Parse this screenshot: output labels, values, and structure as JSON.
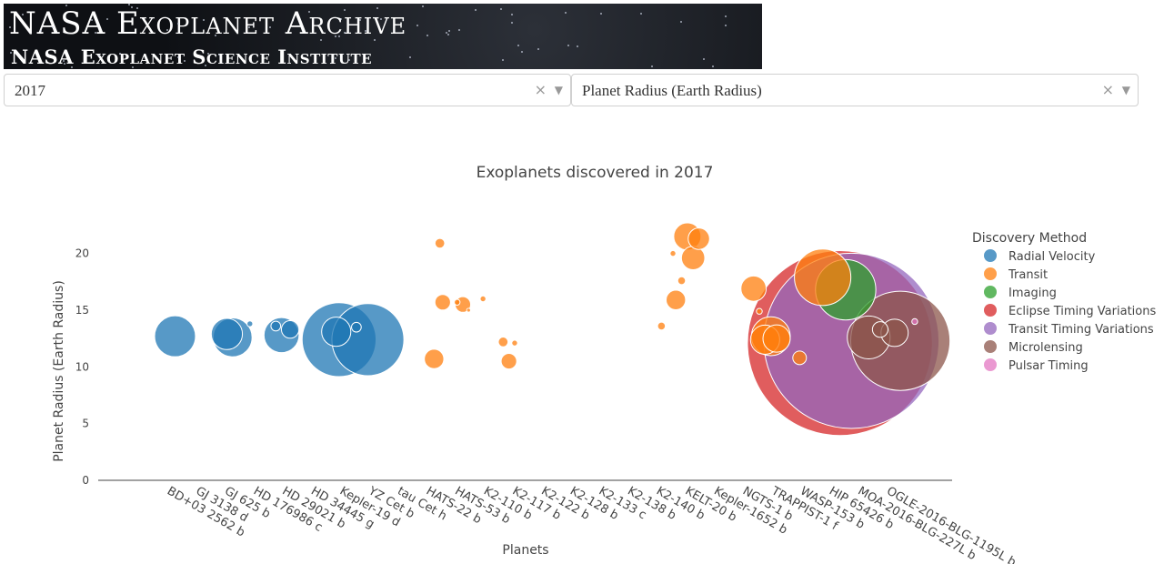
{
  "banner": {
    "title": "NASA Exoplanet Archive",
    "subtitle": "NASA Exoplanet Science Institute"
  },
  "filters": {
    "year": "2017",
    "metric": "Planet Radius (Earth Radius)",
    "clear_glyph": "×",
    "arrow_glyph": "▼"
  },
  "colors": {
    "Radial Velocity": "#1f77b4",
    "Transit": "#ff7f0e",
    "Imaging": "#2ca02c",
    "Eclipse Timing Variations": "#d62728",
    "Transit Timing Variations": "#9467bd",
    "Microlensing": "#8c564b",
    "Pulsar Timing": "#e377c2"
  },
  "chart_data": {
    "type": "scatter",
    "title": "Exoplanets discovered in 2017",
    "xlabel": "Planets",
    "ylabel": "Planet Radius (Earth Radius)",
    "ylim": [
      0,
      23.5
    ],
    "yticks": [
      0,
      5,
      10,
      15,
      20
    ],
    "grid": false,
    "legend_title": "Discovery Method",
    "legend_position": "right",
    "categories": [
      "BD+03 2562 b",
      "GJ 3138 d",
      "GJ 625 b",
      "HD 176986 c",
      "HD 29021 b",
      "HD 34445 g",
      "Kepler-19 d",
      "YZ Cet b",
      "tau Cet h",
      "HATS-22 b",
      "HATS-53 b",
      "K2-110 b",
      "K2-117 b",
      "K2-122 b",
      "K2-128 b",
      "K2-133 c",
      "K2-138 b",
      "K2-140 b",
      "KELT-20 b",
      "Kepler-1652 b",
      "NGTS-1 b",
      "TRAPPIST-1 f",
      "WASP-153 b",
      "HIP 65426 b",
      "MOA-2016-BLG-227L b",
      "OGLE-2016-BLG-1195L b"
    ],
    "series": [
      {
        "name": "Radial Velocity",
        "points": [
          {
            "x": 0.3,
            "y": 12.7,
            "size": 2.1
          },
          {
            "x": 2.1,
            "y": 12.9,
            "size": 1.6
          },
          {
            "x": 2.3,
            "y": 12.6,
            "size": 2.0
          },
          {
            "x": 2.9,
            "y": 13.8,
            "size": 0.3
          },
          {
            "x": 3.8,
            "y": 13.6,
            "size": 0.5
          },
          {
            "x": 4.0,
            "y": 12.8,
            "size": 1.8
          },
          {
            "x": 4.3,
            "y": 13.3,
            "size": 0.9
          },
          {
            "x": 5.9,
            "y": 13.1,
            "size": 1.5
          },
          {
            "x": 6.0,
            "y": 12.4,
            "size": 3.8
          },
          {
            "x": 6.6,
            "y": 13.5,
            "size": 0.5
          },
          {
            "x": 7.0,
            "y": 12.4,
            "size": 3.7
          }
        ]
      },
      {
        "name": "Transit",
        "points": [
          {
            "x": 9.3,
            "y": 10.7,
            "size": 1.0
          },
          {
            "x": 9.5,
            "y": 20.9,
            "size": 0.5
          },
          {
            "x": 9.6,
            "y": 15.7,
            "size": 0.8
          },
          {
            "x": 10.1,
            "y": 15.7,
            "size": 0.3
          },
          {
            "x": 10.3,
            "y": 15.5,
            "size": 0.8
          },
          {
            "x": 10.5,
            "y": 15.0,
            "size": 0.2
          },
          {
            "x": 11.0,
            "y": 16.0,
            "size": 0.3
          },
          {
            "x": 11.7,
            "y": 12.2,
            "size": 0.5
          },
          {
            "x": 11.9,
            "y": 10.5,
            "size": 0.8
          },
          {
            "x": 12.1,
            "y": 12.1,
            "size": 0.3
          },
          {
            "x": 17.2,
            "y": 13.6,
            "size": 0.4
          },
          {
            "x": 17.6,
            "y": 20.0,
            "size": 0.3
          },
          {
            "x": 17.7,
            "y": 15.9,
            "size": 1.0
          },
          {
            "x": 17.9,
            "y": 17.6,
            "size": 0.4
          },
          {
            "x": 18.1,
            "y": 21.5,
            "size": 1.4
          },
          {
            "x": 18.3,
            "y": 19.6,
            "size": 1.2
          },
          {
            "x": 18.5,
            "y": 21.3,
            "size": 1.1
          },
          {
            "x": 20.4,
            "y": 16.9,
            "size": 1.3
          },
          {
            "x": 20.6,
            "y": 14.9,
            "size": 0.3
          },
          {
            "x": 20.8,
            "y": 12.4,
            "size": 1.5
          },
          {
            "x": 21.0,
            "y": 12.7,
            "size": 2.0
          },
          {
            "x": 21.2,
            "y": 12.5,
            "size": 1.4
          },
          {
            "x": 22.0,
            "y": 10.8,
            "size": 0.7
          },
          {
            "x": 22.8,
            "y": 17.9,
            "size": 2.9
          }
        ]
      },
      {
        "name": "Imaging",
        "points": [
          {
            "x": 23.6,
            "y": 16.8,
            "size": 3.1
          }
        ]
      },
      {
        "name": "Eclipse Timing Variations",
        "points": [
          {
            "x": 23.4,
            "y": 12.1,
            "size": 9.5
          }
        ]
      },
      {
        "name": "Transit Timing Variations",
        "points": [
          {
            "x": 23.8,
            "y": 12.3,
            "size": 9.0
          }
        ]
      },
      {
        "name": "Microlensing",
        "points": [
          {
            "x": 24.4,
            "y": 12.6,
            "size": 2.2
          },
          {
            "x": 24.8,
            "y": 13.3,
            "size": 0.8
          },
          {
            "x": 25.3,
            "y": 13.0,
            "size": 1.4
          },
          {
            "x": 25.5,
            "y": 12.3,
            "size": 5.1
          }
        ]
      },
      {
        "name": "Pulsar Timing",
        "points": [
          {
            "x": 26.0,
            "y": 14.0,
            "size": 0.3
          }
        ]
      }
    ]
  }
}
